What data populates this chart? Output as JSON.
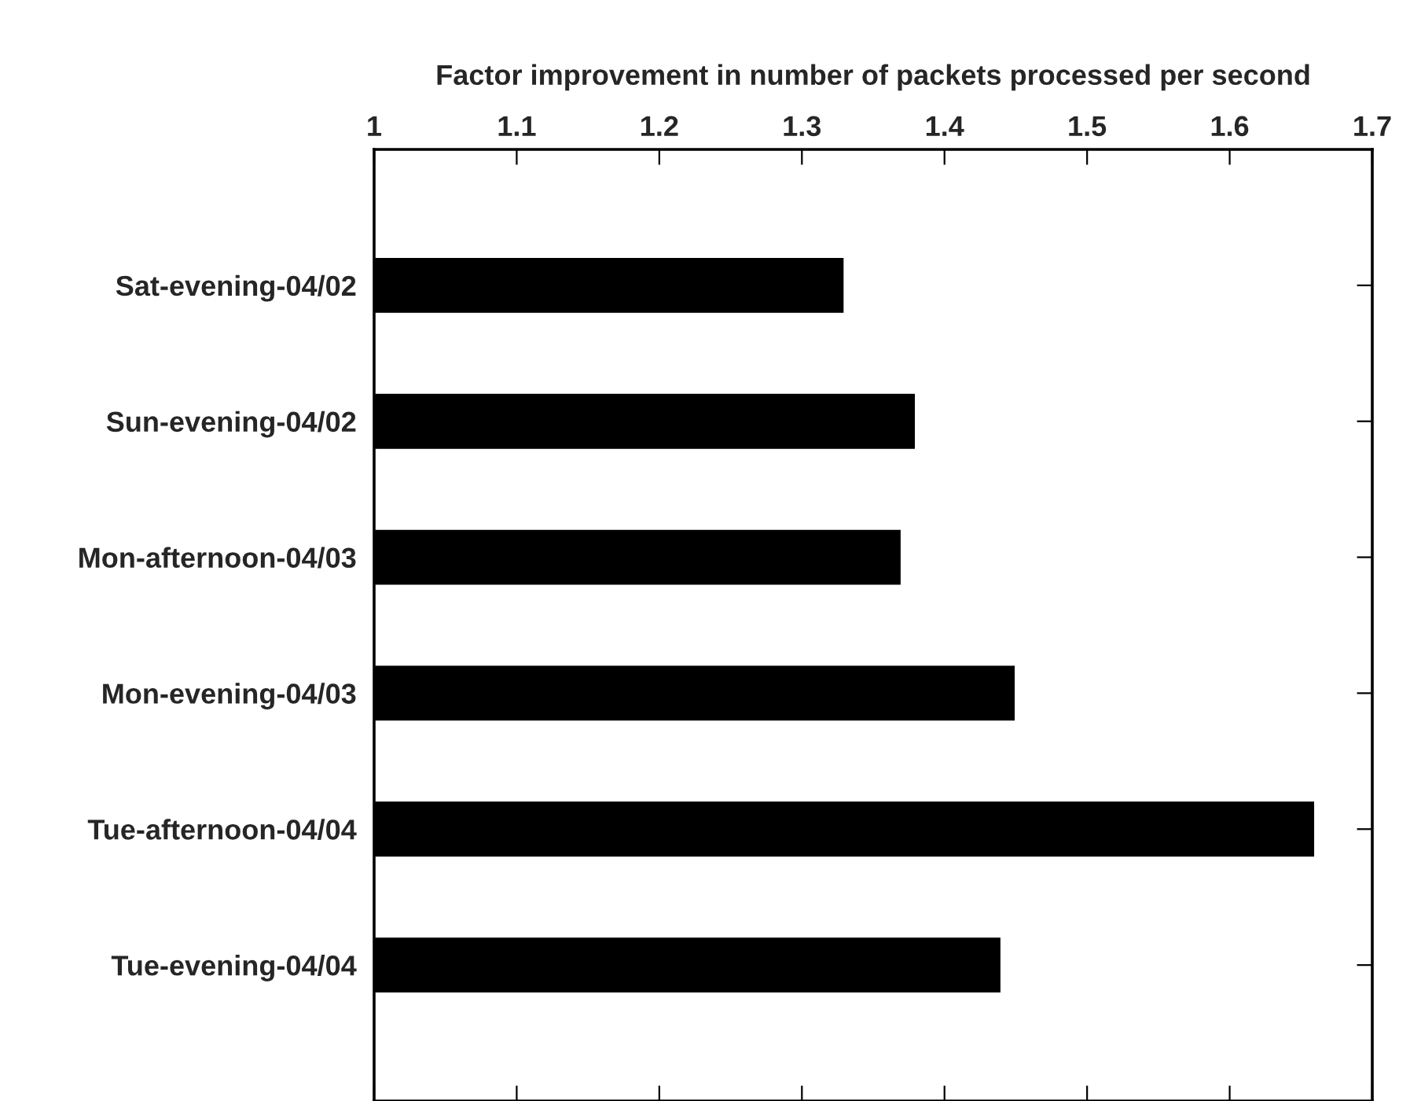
{
  "chart_data": {
    "type": "bar",
    "orientation": "horizontal",
    "xlabel": "Factor improvement in number of packets processed per second",
    "categories": [
      "Sat-evening-04/02",
      "Sun-evening-04/02",
      "Mon-afternoon-04/03",
      "Mon-evening-04/03",
      "Tue-afternoon-04/04",
      "Tue-evening-04/04"
    ],
    "values": [
      1.33,
      1.38,
      1.37,
      1.45,
      1.66,
      1.44
    ],
    "color": "#000000",
    "xlim": [
      1,
      1.7
    ],
    "xticks": [
      1,
      1.1,
      1.2,
      1.3,
      1.4,
      1.5,
      1.6,
      1.7
    ],
    "grid": false,
    "legend": false
  }
}
